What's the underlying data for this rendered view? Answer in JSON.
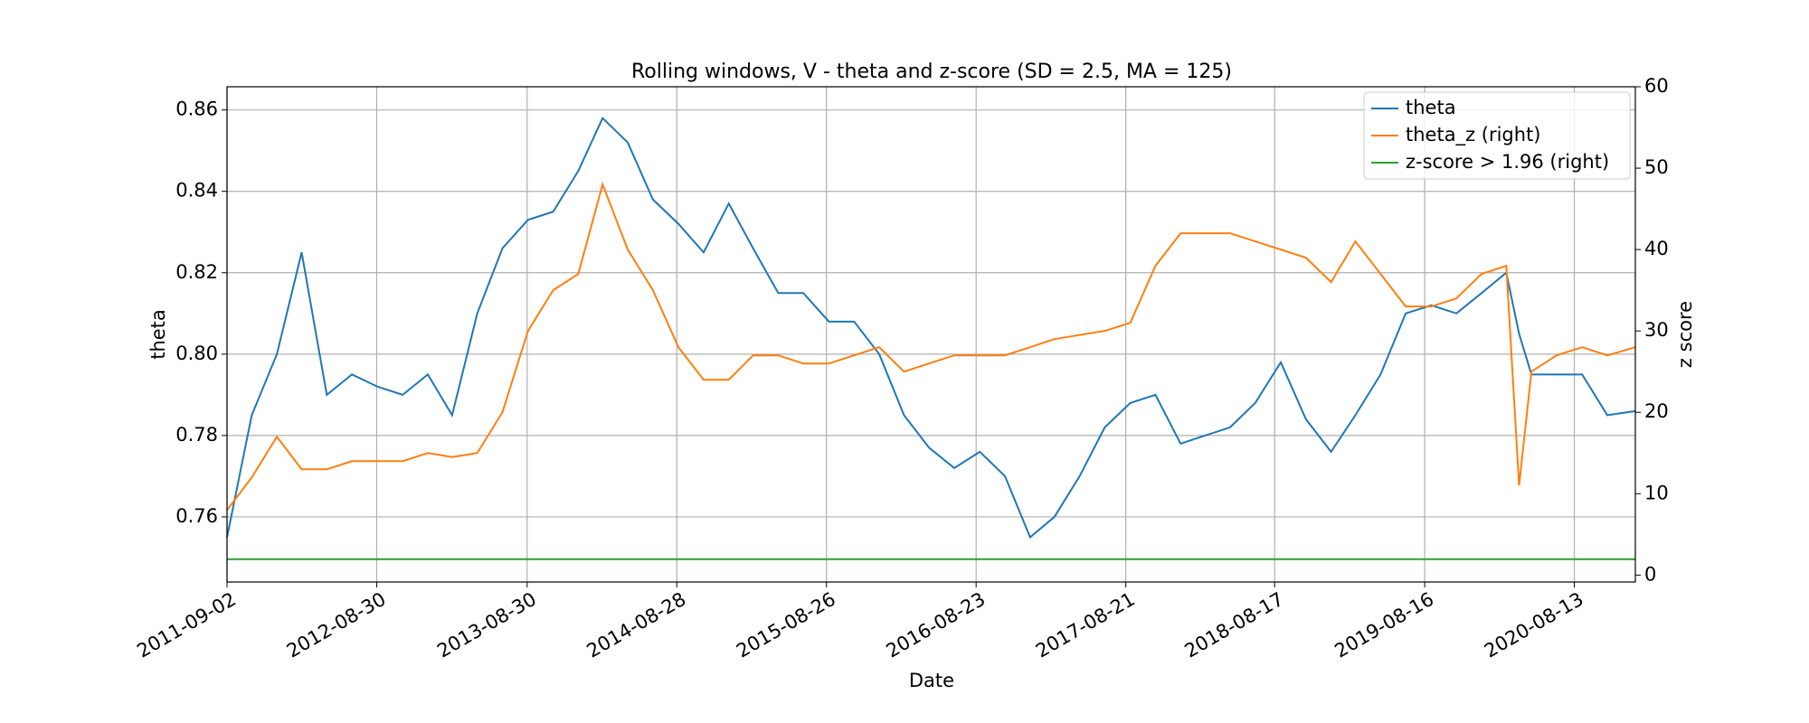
{
  "chart_data": {
    "type": "line",
    "title": "Rolling windows, V - theta and z-score (SD = 2.5, MA = 125)",
    "x_label": "Date",
    "y_label": "theta",
    "y2_label": "z score",
    "x": [
      "2011-09-02",
      "2011-11-01",
      "2012-01-01",
      "2012-03-01",
      "2012-05-01",
      "2012-07-01",
      "2012-09-01",
      "2012-11-01",
      "2013-01-01",
      "2013-03-01",
      "2013-05-01",
      "2013-07-01",
      "2013-09-01",
      "2013-11-01",
      "2014-01-01",
      "2014-03-01",
      "2014-05-01",
      "2014-07-01",
      "2014-09-01",
      "2014-11-01",
      "2015-01-01",
      "2015-03-01",
      "2015-05-01",
      "2015-07-01",
      "2015-09-01",
      "2015-11-01",
      "2016-01-01",
      "2016-03-01",
      "2016-05-01",
      "2016-07-01",
      "2016-09-01",
      "2016-11-01",
      "2017-01-01",
      "2017-03-01",
      "2017-05-01",
      "2017-07-01",
      "2017-09-01",
      "2017-11-01",
      "2018-01-01",
      "2018-03-01",
      "2018-05-01",
      "2018-07-01",
      "2018-09-01",
      "2018-11-01",
      "2019-01-01",
      "2019-03-01",
      "2019-05-01",
      "2019-07-01",
      "2019-09-01",
      "2019-11-01",
      "2020-01-01",
      "2020-03-01",
      "2020-04-01",
      "2020-05-01",
      "2020-07-01",
      "2020-09-01",
      "2020-11-01",
      "2021-01-08"
    ],
    "series": [
      {
        "name": "theta",
        "color": "#1f77b4",
        "values": [
          0.755,
          0.785,
          0.8,
          0.825,
          0.79,
          0.795,
          0.792,
          0.79,
          0.795,
          0.785,
          0.81,
          0.826,
          0.833,
          0.835,
          0.845,
          0.858,
          0.852,
          0.838,
          0.832,
          0.825,
          0.837,
          0.826,
          0.815,
          0.815,
          0.808,
          0.808,
          0.8,
          0.785,
          0.777,
          0.772,
          0.776,
          0.77,
          0.755,
          0.76,
          0.77,
          0.782,
          0.788,
          0.79,
          0.778,
          0.78,
          0.782,
          0.788,
          0.798,
          0.784,
          0.776,
          0.785,
          0.795,
          0.81,
          0.812,
          0.81,
          0.815,
          0.82,
          0.805,
          0.795,
          0.795,
          0.795,
          0.785,
          0.786
        ]
      },
      {
        "name": "theta_z (right)",
        "color": "#ff7f0e",
        "axis": "y2",
        "values": [
          8,
          12,
          17,
          13,
          13,
          14,
          14,
          14,
          15,
          14.5,
          15,
          20,
          30,
          35,
          37,
          48,
          40,
          35,
          28,
          24,
          24,
          27,
          27,
          26,
          26,
          27,
          28,
          25,
          26,
          27,
          27,
          27,
          28,
          29,
          29.5,
          30,
          31,
          38,
          42,
          42,
          42,
          41,
          40,
          39,
          36,
          41,
          37,
          33,
          33,
          34,
          37,
          38,
          11,
          25,
          27,
          28,
          27,
          28
        ]
      },
      {
        "name": "z-score > 1.96 (right)",
        "color": "#2ca02c",
        "axis": "y2",
        "x": [
          "2011-09-02",
          "2021-01-08"
        ],
        "values": [
          1.96,
          1.96
        ]
      }
    ],
    "xlim": [
      "2011-09-02",
      "2021-01-08"
    ],
    "xticks": [
      "2011-09-02",
      "2012-08-30",
      "2013-08-30",
      "2014-08-28",
      "2015-08-26",
      "2016-08-23",
      "2017-08-21",
      "2018-08-17",
      "2019-08-16",
      "2020-08-13"
    ],
    "ylim": [
      0.744,
      0.8657
    ],
    "yticks": [
      0.76,
      0.78,
      {
        "value": 0.8,
        "label": "0.80"
      },
      0.82,
      0.84,
      0.86
    ],
    "y2lim": [
      -0.85,
      60
    ],
    "y2ticks": [
      0,
      10,
      20,
      30,
      40,
      50,
      60
    ],
    "grid": true,
    "legend": "upper right"
  }
}
